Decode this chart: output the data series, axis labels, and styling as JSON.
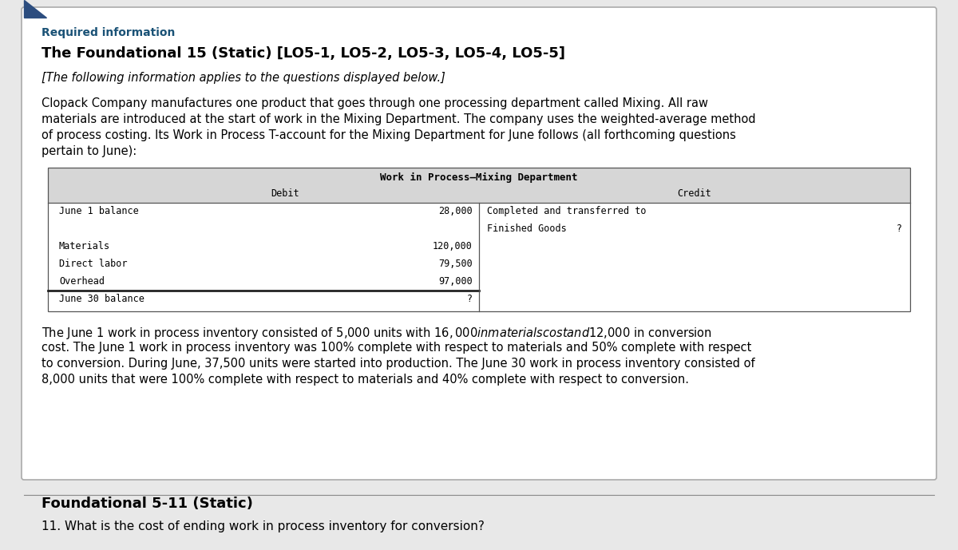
{
  "bg_color": "#ffffff",
  "outer_bg": "#e8e8e8",
  "required_info_color": "#1a5276",
  "title_bold": "The Foundational 15 (Static) [LO5-1, LO5-2, LO5-3, LO5-4, LO5-5]",
  "subtitle_italic": "[The following information applies to the questions displayed below.]",
  "body_line1": "Clopack Company manufactures one product that goes through one processing department called Mixing. All raw",
  "body_line2": "materials are introduced at the start of work in the Mixing Department. The company uses the weighted-average method",
  "body_line3": "of process costing. Its Work in Process T-account for the Mixing Department for June follows (all forthcoming questions",
  "body_line4": "pertain to June):",
  "table_title": "Work in Process–Mixing Department",
  "table_header_left": "Debit",
  "table_header_right": "Credit",
  "table_bg": "#d6d6d6",
  "table_border": "#555555",
  "note_line1": "The June 1 work in process inventory consisted of 5,000 units with $16,000 in materials cost and $12,000 in conversion",
  "note_line2": "cost. The June 1 work in process inventory was 100% complete with respect to materials and 50% complete with respect",
  "note_line3": "to conversion. During June, 37,500 units were started into production. The June 30 work in process inventory consisted of",
  "note_line4": "8,000 units that were 100% complete with respect to materials and 40% complete with respect to conversion.",
  "section_title": "Foundational 5-11 (Static)",
  "question_text": "11. What is the cost of ending work in process inventory for conversion?",
  "triangle_color": "#2c4d7f",
  "font_sans": "DejaVu Sans",
  "font_mono": "DejaVu Sans Mono"
}
